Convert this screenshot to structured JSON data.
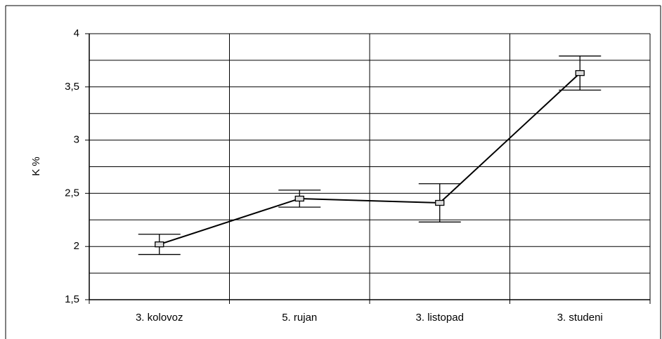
{
  "chart_data": {
    "type": "line",
    "ylabel": "K %",
    "categories": [
      "3. kolovoz",
      "5. rujan",
      "3. listopad",
      "3. studeni"
    ],
    "values": [
      2.02,
      2.45,
      2.41,
      3.63
    ],
    "errors": [
      0.095,
      0.08,
      0.18,
      0.16
    ],
    "color": "#000000",
    "ylim": [
      1.5,
      4
    ],
    "yticks": [
      {
        "value": 1.5,
        "label": "1,5"
      },
      2,
      {
        "value": 2.5,
        "label": "2,5"
      },
      3,
      {
        "value": 3.5,
        "label": "3,5"
      },
      4
    ],
    "ygrid_minor": [
      1.75,
      2.25,
      2.75,
      3.25,
      3.75
    ],
    "grid": true
  }
}
